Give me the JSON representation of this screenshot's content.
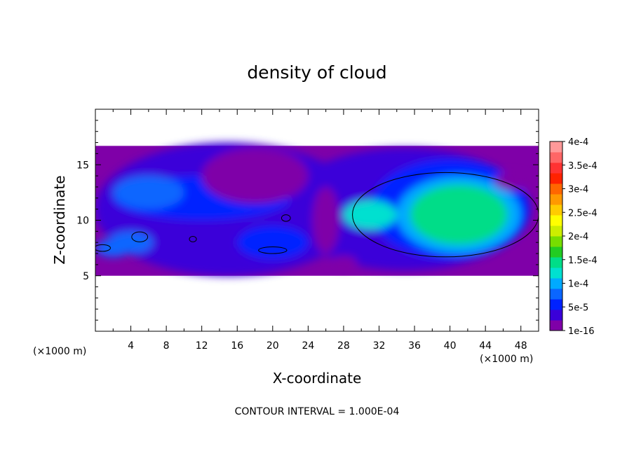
{
  "chart_data": {
    "type": "heatmap",
    "title": "density of cloud",
    "xlabel": "X-coordinate",
    "ylabel": "Z-coordinate",
    "x_unit": "(×1000 m)",
    "x_unit_right": "(×1000 m)",
    "xlim": [
      0,
      50
    ],
    "ylim": [
      0,
      20
    ],
    "x_ticks": [
      4,
      8,
      12,
      16,
      20,
      24,
      28,
      32,
      36,
      40,
      44,
      48
    ],
    "y_ticks": [
      5,
      10,
      15
    ],
    "footnote": "CONTOUR INTERVAL = 1.000E-04",
    "colorbar": {
      "labels": [
        "1e-16",
        "5e-5",
        "1e-4",
        "1.5e-4",
        "2e-4",
        "2.5e-4",
        "3e-4",
        "3.5e-4",
        "4e-4"
      ],
      "colors": [
        "#7f00a8",
        "#3a00d9",
        "#0022ff",
        "#0a66ff",
        "#00aaff",
        "#00e0d0",
        "#00dd88",
        "#22cc22",
        "#77dd00",
        "#ccee00",
        "#ffff00",
        "#ffcc00",
        "#ff9900",
        "#ff6600",
        "#ff2200",
        "#ff3333",
        "#ff6666",
        "#ff9999"
      ]
    },
    "cloud_layer_z": [
      5,
      16.7
    ],
    "blobs": [
      {
        "x": 15,
        "z": 11,
        "rx": 15,
        "ry": 6,
        "level": 1
      },
      {
        "x": 35,
        "z": 11,
        "rx": 14,
        "ry": 5.5,
        "level": 1
      },
      {
        "x": 40,
        "z": 11,
        "rx": 9,
        "ry": 4.5,
        "level": 2
      },
      {
        "x": 41,
        "z": 10.5,
        "rx": 7,
        "ry": 3.5,
        "level": 4
      },
      {
        "x": 41,
        "z": 10.5,
        "rx": 5.5,
        "ry": 2.7,
        "level": 6
      },
      {
        "x": 31,
        "z": 10.5,
        "rx": 3,
        "ry": 1.3,
        "level": 5
      },
      {
        "x": 12,
        "z": 12,
        "rx": 10,
        "ry": 2,
        "level": 2
      },
      {
        "x": 6,
        "z": 12.5,
        "rx": 4,
        "ry": 1.5,
        "level": 3
      },
      {
        "x": 4,
        "z": 8,
        "rx": 2.5,
        "ry": 1,
        "level": 3
      },
      {
        "x": 20,
        "z": 8,
        "rx": 4,
        "ry": 1.5,
        "level": 2
      },
      {
        "x": 2,
        "z": 7.5,
        "rx": 2,
        "ry": 0.8,
        "level": 3
      }
    ],
    "gaps": [
      {
        "x": 18,
        "z": 14,
        "rx": 6,
        "ry": 2.5
      },
      {
        "x": 26,
        "z": 10,
        "rx": 1.5,
        "ry": 3
      },
      {
        "x": 47,
        "z": 13.5,
        "rx": 2,
        "ry": 0.8
      },
      {
        "x": 28,
        "z": 6.2,
        "rx": 1.5,
        "ry": 0.6
      }
    ],
    "contours": [
      {
        "x": 39.5,
        "z": 10.5,
        "rx": 10.5,
        "ry": 3.8
      },
      {
        "x": 5,
        "z": 8.5,
        "rx": 0.9,
        "ry": 0.45
      },
      {
        "x": 21.5,
        "z": 10.2,
        "rx": 0.5,
        "ry": 0.3
      },
      {
        "x": 20,
        "z": 7.3,
        "rx": 1.6,
        "ry": 0.3
      },
      {
        "x": 0.8,
        "z": 7.5,
        "rx": 0.9,
        "ry": 0.3
      },
      {
        "x": 11,
        "z": 8.3,
        "rx": 0.4,
        "ry": 0.25
      }
    ]
  }
}
